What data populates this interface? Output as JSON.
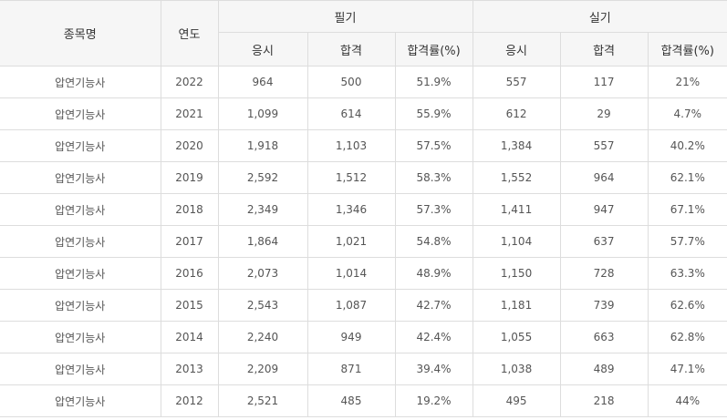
{
  "header": {
    "col_name": "종목명",
    "col_year": "연도",
    "group_written": "필기",
    "group_practical": "실기",
    "sub_applicants": "응시",
    "sub_passed": "합격",
    "sub_rate": "합격률(%)"
  },
  "rows": [
    {
      "name": "압연기능사",
      "year": "2022",
      "w_app": "964",
      "w_pass": "500",
      "w_rate": "51.9%",
      "p_app": "557",
      "p_pass": "117",
      "p_rate": "21%"
    },
    {
      "name": "압연기능사",
      "year": "2021",
      "w_app": "1,099",
      "w_pass": "614",
      "w_rate": "55.9%",
      "p_app": "612",
      "p_pass": "29",
      "p_rate": "4.7%"
    },
    {
      "name": "압연기능사",
      "year": "2020",
      "w_app": "1,918",
      "w_pass": "1,103",
      "w_rate": "57.5%",
      "p_app": "1,384",
      "p_pass": "557",
      "p_rate": "40.2%"
    },
    {
      "name": "압연기능사",
      "year": "2019",
      "w_app": "2,592",
      "w_pass": "1,512",
      "w_rate": "58.3%",
      "p_app": "1,552",
      "p_pass": "964",
      "p_rate": "62.1%"
    },
    {
      "name": "압연기능사",
      "year": "2018",
      "w_app": "2,349",
      "w_pass": "1,346",
      "w_rate": "57.3%",
      "p_app": "1,411",
      "p_pass": "947",
      "p_rate": "67.1%"
    },
    {
      "name": "압연기능사",
      "year": "2017",
      "w_app": "1,864",
      "w_pass": "1,021",
      "w_rate": "54.8%",
      "p_app": "1,104",
      "p_pass": "637",
      "p_rate": "57.7%"
    },
    {
      "name": "압연기능사",
      "year": "2016",
      "w_app": "2,073",
      "w_pass": "1,014",
      "w_rate": "48.9%",
      "p_app": "1,150",
      "p_pass": "728",
      "p_rate": "63.3%"
    },
    {
      "name": "압연기능사",
      "year": "2015",
      "w_app": "2,543",
      "w_pass": "1,087",
      "w_rate": "42.7%",
      "p_app": "1,181",
      "p_pass": "739",
      "p_rate": "62.6%"
    },
    {
      "name": "압연기능사",
      "year": "2014",
      "w_app": "2,240",
      "w_pass": "949",
      "w_rate": "42.4%",
      "p_app": "1,055",
      "p_pass": "663",
      "p_rate": "62.8%"
    },
    {
      "name": "압연기능사",
      "year": "2013",
      "w_app": "2,209",
      "w_pass": "871",
      "w_rate": "39.4%",
      "p_app": "1,038",
      "p_pass": "489",
      "p_rate": "47.1%"
    },
    {
      "name": "압연기능사",
      "year": "2012",
      "w_app": "2,521",
      "w_pass": "485",
      "w_rate": "19.2%",
      "p_app": "495",
      "p_pass": "218",
      "p_rate": "44%"
    }
  ]
}
